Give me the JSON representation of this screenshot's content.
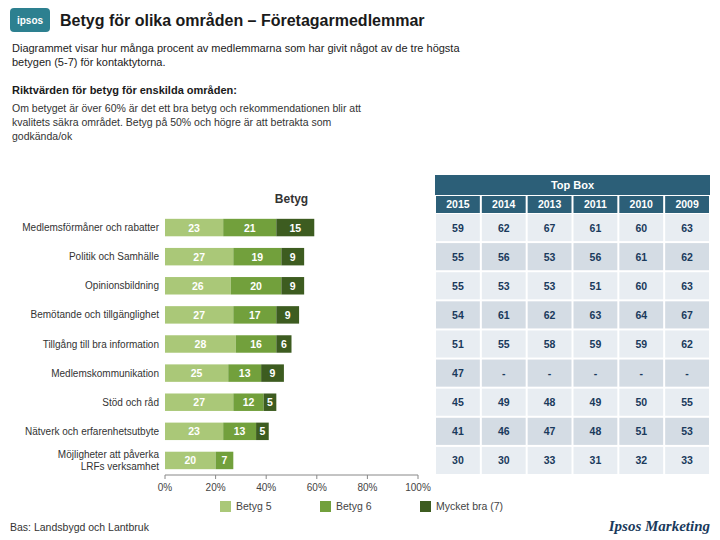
{
  "chart_data": {
    "type": "bar",
    "orientation": "horizontal",
    "stacked": true,
    "data_labels": true,
    "grid": false,
    "legend": "bottom",
    "title": "Betyg för olika områden – Företagarmedlemmar",
    "subtitle": [
      "Diagrammet visar hur många procent av medlemmarna som har givit något av de tre högsta",
      "betygen (5-7) för kontaktytorna."
    ],
    "logo_text": "ipsos",
    "annotations": {
      "title": "Riktvärden för betyg för enskilda områden:",
      "lines": [
        "Om betyget är över 60% är det ett bra betyg och rekommendationen blir att",
        "kvalitets säkra området. Betyg på 50% och högre är att betrakta som",
        "godkända/ok"
      ]
    },
    "panel_title": "Betyg",
    "categories": [
      "Medlemsförmåner och rabatter",
      "Politik och Samhälle",
      "Opinionsbildning",
      "Bemötande och tillgänglighet",
      "Tillgång till bra information",
      "Medlemskommunikation",
      "Stöd och råd",
      "Nätverk och erfarenhetsutbyte",
      "Möjligheter att påverka\nLRFs verksamhet"
    ],
    "series": [
      {
        "name": "Betyg 5",
        "color": "#aac878",
        "values": [
          23,
          27,
          26,
          27,
          28,
          25,
          27,
          23,
          20
        ]
      },
      {
        "name": "Betyg 6",
        "color": "#72a03c",
        "values": [
          21,
          19,
          20,
          17,
          16,
          13,
          12,
          13,
          7
        ]
      },
      {
        "name": "Mycket bra (7)",
        "color": "#3d5c20",
        "values": [
          15,
          9,
          9,
          9,
          6,
          9,
          5,
          5,
          0
        ]
      }
    ],
    "xlim": [
      0,
      100
    ],
    "xticks": [
      {
        "value": 0,
        "label": "0%"
      },
      {
        "value": 20,
        "label": "20%"
      },
      {
        "value": 40,
        "label": "40%"
      },
      {
        "value": 60,
        "label": "60%"
      },
      {
        "value": 80,
        "label": "80%"
      },
      {
        "value": 100,
        "label": "100%"
      }
    ],
    "table": {
      "title": "Top Box",
      "headers": [
        "2015",
        "2014",
        "2013",
        "2011",
        "2010",
        "2009"
      ],
      "rows": [
        [
          59,
          62,
          67,
          61,
          60,
          63
        ],
        [
          55,
          56,
          53,
          56,
          61,
          62
        ],
        [
          55,
          53,
          53,
          51,
          60,
          63
        ],
        [
          54,
          61,
          62,
          63,
          64,
          67
        ],
        [
          51,
          55,
          58,
          59,
          59,
          62
        ],
        [
          47,
          "-",
          "-",
          "-",
          "-",
          "-"
        ],
        [
          45,
          49,
          48,
          49,
          50,
          55
        ],
        [
          41,
          46,
          47,
          48,
          51,
          53
        ],
        [
          30,
          30,
          33,
          31,
          32,
          33
        ]
      ]
    },
    "source": "Bas: Landsbygd och Lantbruk",
    "brand": "Ipsos Marketing"
  }
}
